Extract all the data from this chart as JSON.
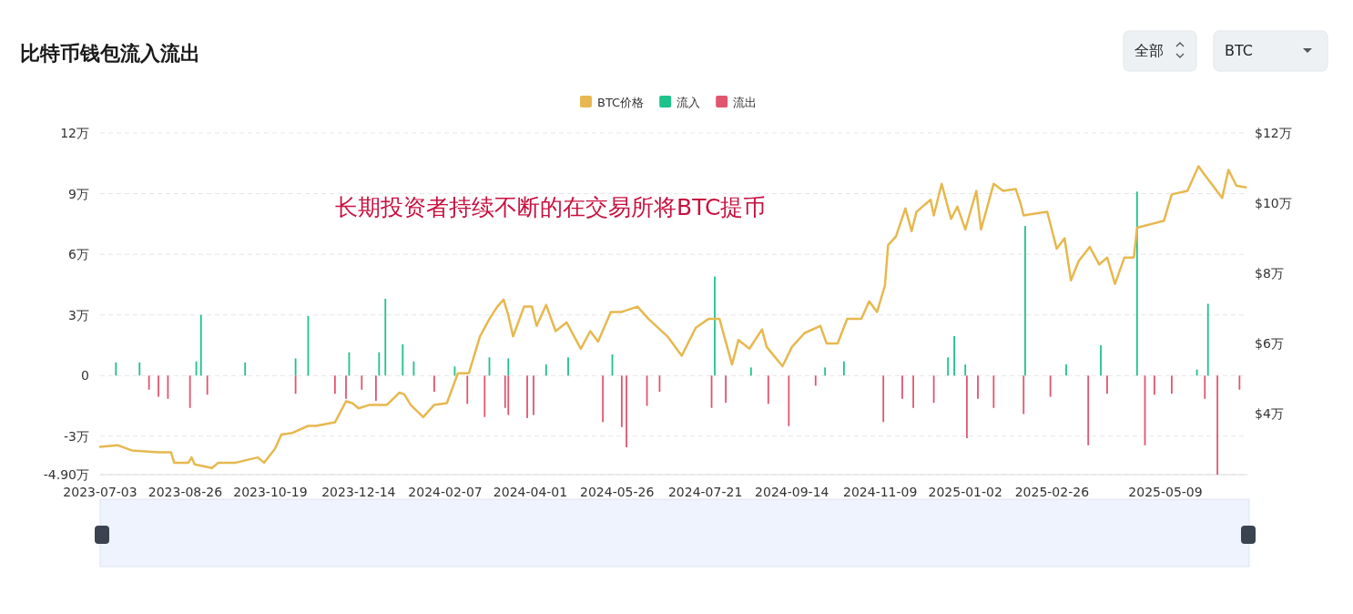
{
  "chart_data": {
    "type": "bar",
    "title": "比特币钱包流入流出",
    "annotations": [
      "长期投资者持续不断的在交易所将BTC提币",
      "全部",
      "BTC"
    ],
    "legend": "top",
    "grid": "y",
    "xlim": [
      "2023-07-03",
      "2025-06-30"
    ],
    "xticks": [
      "2023-07-03",
      "2023-08-26",
      "2023-10-19",
      "2023-12-14",
      "2024-02-07",
      "2024-04-01",
      "2024-05-26",
      "2024-07-21",
      "2024-09-14",
      "2024-11-09",
      "2025-01-02",
      "2025-02-26",
      "2025-05-09"
    ],
    "ylim": [
      -4.9,
      12
    ],
    "yticks": [
      {
        "value": 12,
        "label": "12万"
      },
      {
        "value": 9,
        "label": "9万"
      },
      {
        "value": 6,
        "label": "6万"
      },
      {
        "value": 3,
        "label": "3万"
      },
      0,
      {
        "value": -3,
        "label": "-3万"
      },
      {
        "value": -4.9,
        "label": "-4.90万"
      }
    ],
    "y2lim": [
      2.26,
      12
    ],
    "y2ticks": [
      {
        "value": 12,
        "label": "$12万"
      },
      {
        "value": 10,
        "label": "$10万"
      },
      {
        "value": 8,
        "label": "$8万"
      },
      {
        "value": 6,
        "label": "$6万"
      },
      {
        "value": 4,
        "label": "$4万"
      }
    ],
    "series": [
      {
        "name": "BTC价格",
        "type": "line",
        "axis": "y2",
        "color": "#e6b84f",
        "x": [
          "2023-07-03",
          "2023-07-14",
          "2023-07-23",
          "2023-08-09",
          "2023-08-17",
          "2023-08-19",
          "2023-08-28",
          "2023-08-30",
          "2023-09-01",
          "2023-09-12",
          "2023-09-16",
          "2023-09-27",
          "2023-10-11",
          "2023-10-15",
          "2023-10-22",
          "2023-10-26",
          "2023-11-02",
          "2023-11-12",
          "2023-11-17",
          "2023-11-29",
          "2023-12-06",
          "2023-12-10",
          "2023-12-14",
          "2023-12-21",
          "2024-01-01",
          "2024-01-09",
          "2024-01-12",
          "2024-01-16",
          "2024-01-24",
          "2024-01-31",
          "2024-02-08",
          "2024-02-15",
          "2024-02-22",
          "2024-02-29",
          "2024-03-06",
          "2024-03-11",
          "2024-03-15",
          "2024-03-18",
          "2024-03-21",
          "2024-03-28",
          "2024-04-02",
          "2024-04-05",
          "2024-04-11",
          "2024-04-17",
          "2024-04-24",
          "2024-05-03",
          "2024-05-09",
          "2024-05-14",
          "2024-05-22",
          "2024-05-29",
          "2024-06-08",
          "2024-06-15",
          "2024-06-27",
          "2024-07-06",
          "2024-07-15",
          "2024-07-23",
          "2024-07-30",
          "2024-08-07",
          "2024-08-11",
          "2024-08-18",
          "2024-08-26",
          "2024-08-29",
          "2024-09-08",
          "2024-09-14",
          "2024-09-22",
          "2024-10-02",
          "2024-10-06",
          "2024-10-13",
          "2024-10-19",
          "2024-10-28",
          "2024-11-02",
          "2024-11-07",
          "2024-11-12",
          "2024-11-14",
          "2024-11-19",
          "2024-11-25",
          "2024-11-29",
          "2024-12-02",
          "2024-12-11",
          "2024-12-13",
          "2024-12-18",
          "2024-12-24",
          "2024-12-28",
          "2025-01-02",
          "2025-01-09",
          "2025-01-12",
          "2025-01-20",
          "2025-01-26",
          "2025-02-03",
          "2025-02-06",
          "2025-02-08",
          "2025-02-15",
          "2025-02-23",
          "2025-03-01",
          "2025-03-06",
          "2025-03-10",
          "2025-03-15",
          "2025-03-22",
          "2025-03-28",
          "2025-04-02",
          "2025-04-07",
          "2025-04-13",
          "2025-04-19",
          "2025-04-21",
          "2025-05-08",
          "2025-05-13",
          "2025-05-23",
          "2025-05-30",
          "2025-06-03",
          "2025-06-14",
          "2025-06-18",
          "2025-06-23",
          "2025-06-29"
        ],
        "values": [
          3.05,
          3.1,
          2.95,
          2.9,
          2.9,
          2.6,
          2.6,
          2.75,
          2.55,
          2.45,
          2.6,
          2.6,
          2.75,
          2.6,
          3.0,
          3.4,
          3.45,
          3.65,
          3.65,
          3.75,
          4.35,
          4.3,
          4.15,
          4.25,
          4.25,
          4.6,
          4.55,
          4.25,
          3.9,
          4.25,
          4.3,
          5.15,
          5.15,
          6.2,
          6.7,
          7.05,
          7.25,
          6.8,
          6.2,
          7.05,
          7.05,
          6.5,
          7.1,
          6.35,
          6.6,
          5.85,
          6.35,
          6.05,
          6.9,
          6.9,
          7.05,
          6.7,
          6.2,
          5.65,
          6.45,
          6.7,
          6.7,
          5.4,
          6.1,
          5.85,
          6.4,
          5.9,
          5.35,
          5.9,
          6.3,
          6.5,
          6.0,
          6.0,
          6.7,
          6.7,
          7.2,
          6.9,
          7.65,
          8.8,
          9.05,
          9.85,
          9.2,
          9.75,
          10.1,
          9.65,
          10.55,
          9.55,
          9.9,
          9.25,
          10.35,
          9.25,
          10.55,
          10.35,
          10.4,
          10.0,
          9.65,
          9.7,
          9.75,
          8.7,
          9.0,
          7.8,
          8.35,
          8.75,
          8.25,
          8.45,
          7.7,
          8.45,
          8.45,
          9.3,
          9.5,
          10.25,
          10.35,
          11.05,
          10.8,
          10.15,
          10.95,
          10.5,
          10.45
        ]
      },
      {
        "name": "流入",
        "color": "#1ec28b",
        "x": [
          "2023-07-13",
          "2023-07-28",
          "2023-09-02",
          "2023-09-05",
          "2023-10-03",
          "2023-11-04",
          "2023-11-12",
          "2023-12-08",
          "2023-12-27",
          "2023-12-31",
          "2024-01-11",
          "2024-01-18",
          "2024-02-13",
          "2024-03-06",
          "2024-03-18",
          "2024-04-11",
          "2024-04-25",
          "2024-05-23",
          "2024-07-27",
          "2024-08-19",
          "2024-10-05",
          "2024-10-17",
          "2024-12-22",
          "2024-12-26",
          "2025-01-02",
          "2025-02-09",
          "2025-03-07",
          "2025-03-29",
          "2025-04-21",
          "2025-05-29",
          "2025-06-05"
        ],
        "values": [
          0.65,
          0.65,
          0.7,
          3.0,
          0.65,
          0.85,
          2.95,
          1.15,
          1.15,
          3.8,
          1.55,
          0.7,
          0.45,
          0.9,
          0.85,
          0.55,
          0.9,
          1.05,
          4.9,
          0.4,
          0.4,
          0.7,
          0.9,
          1.95,
          0.55,
          7.4,
          0.55,
          1.5,
          9.1,
          0.3,
          3.55
        ]
      },
      {
        "name": "流出",
        "color": "#e0566f",
        "x": [
          "2023-08-03",
          "2023-08-09",
          "2023-08-15",
          "2023-08-29",
          "2023-09-09",
          "2023-11-04",
          "2023-11-29",
          "2023-12-06",
          "2023-12-16",
          "2023-12-25",
          "2024-01-31",
          "2024-02-21",
          "2024-03-03",
          "2024-03-16",
          "2024-03-18",
          "2024-03-30",
          "2024-04-03",
          "2024-05-17",
          "2024-05-29",
          "2024-06-01",
          "2024-06-14",
          "2024-06-22",
          "2024-07-25",
          "2024-08-03",
          "2024-08-30",
          "2024-09-12",
          "2024-09-29",
          "2024-11-11",
          "2024-11-23",
          "2024-11-30",
          "2024-12-13",
          "2025-01-03",
          "2025-01-10",
          "2025-01-20",
          "2025-02-08",
          "2025-02-25",
          "2025-03-21",
          "2025-04-02",
          "2025-04-26",
          "2025-05-02",
          "2025-05-13",
          "2025-06-03",
          "2025-06-11",
          "2025-06-25"
        ],
        "values": [
          -0.7,
          -1.05,
          -1.15,
          -1.6,
          -0.95,
          -0.9,
          -0.9,
          -1.15,
          -0.7,
          -1.25,
          -0.8,
          -1.4,
          -2.05,
          -1.6,
          -1.95,
          -2.1,
          -1.95,
          -2.3,
          -2.55,
          -3.55,
          -1.5,
          -0.8,
          -1.6,
          -1.35,
          -1.4,
          -2.5,
          -0.5,
          -2.3,
          -1.15,
          -1.6,
          -1.35,
          -3.1,
          -1.15,
          -1.6,
          -1.9,
          -1.05,
          -3.45,
          -0.9,
          -3.45,
          -0.95,
          -0.9,
          -1.15,
          -4.9,
          -0.7
        ]
      }
    ]
  }
}
